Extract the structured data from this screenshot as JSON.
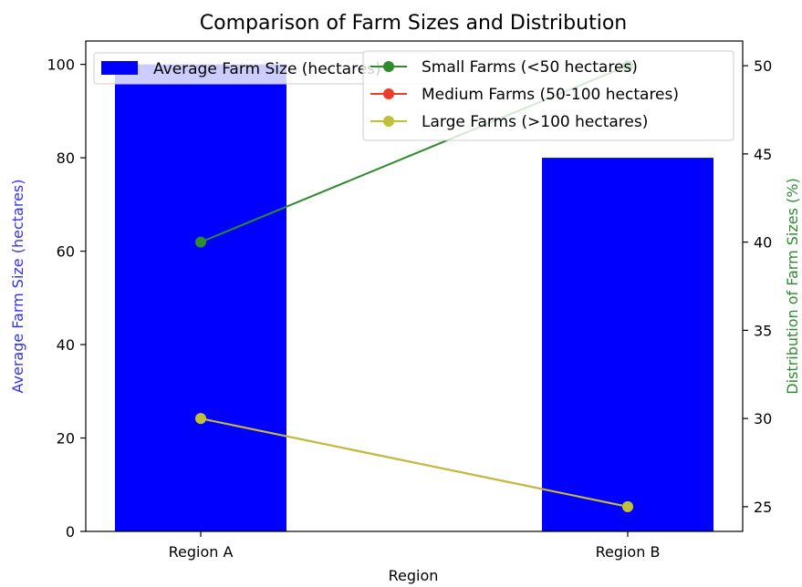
{
  "chart_data": {
    "type": "bar",
    "title": "Comparison of Farm Sizes and Distribution",
    "xlabel": "Region",
    "ylabel": "Average Farm Size (hectares)",
    "y2label": "Distribution of Farm Sizes (%)",
    "categories": [
      "Region A",
      "Region B"
    ],
    "bar_series": {
      "name": "Average Farm Size (hectares)",
      "legend_label": "Average Farm Size (hectares)",
      "color": "#0000ff",
      "values": [
        100,
        80
      ]
    },
    "ylim": [
      0,
      105
    ],
    "yticks": [
      0,
      20,
      40,
      60,
      80,
      100
    ],
    "y2lim": [
      23.6,
      51.4
    ],
    "y2ticks": [
      25,
      30,
      35,
      40,
      45,
      50
    ],
    "line_series": [
      {
        "name": "Small Farms (<50 hectares)",
        "color": "#2e8b2e",
        "values": [
          40,
          50
        ]
      },
      {
        "name": "Medium Farms (50-100 hectares)",
        "color": "#ee3b2a",
        "values": [
          30,
          25
        ]
      },
      {
        "name": "Large Farms (>100 hectares)",
        "color": "#bfbf3a",
        "values": [
          30,
          25
        ]
      }
    ],
    "grid": false,
    "legend_bar_placement": "upper-left",
    "legend_lines_placement": "upper-right"
  }
}
